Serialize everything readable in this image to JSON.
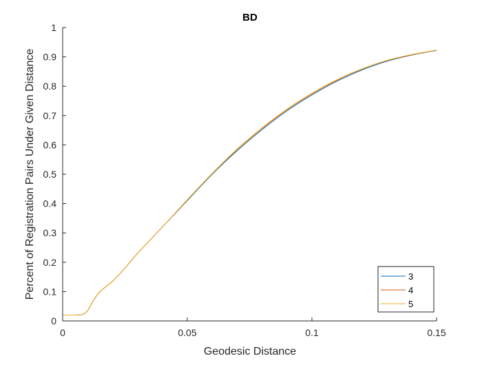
{
  "chart_data": {
    "type": "line",
    "title": "BD",
    "xlabel": "Geodesic Distance",
    "ylabel": "Percent of Registration Pairs Under Given Distance",
    "xlim": [
      0,
      0.15
    ],
    "ylim": [
      0,
      1
    ],
    "xticks": [
      0,
      0.05,
      0.1,
      0.15
    ],
    "xtick_labels": [
      "0",
      "0.05",
      "0.1",
      "0.15"
    ],
    "yticks": [
      0,
      0.1,
      0.2,
      0.3,
      0.4,
      0.5,
      0.6,
      0.7,
      0.8,
      0.9,
      1
    ],
    "ytick_labels": [
      "0",
      "0.1",
      "0.2",
      "0.3",
      "0.4",
      "0.5",
      "0.6",
      "0.7",
      "0.8",
      "0.9",
      "1"
    ],
    "grid": false,
    "legend_position": "bottom-right",
    "series": [
      {
        "name": "3",
        "color": "#0072BD",
        "x": [
          0,
          0.005,
          0.008,
          0.01,
          0.012,
          0.015,
          0.02,
          0.025,
          0.03,
          0.04,
          0.05,
          0.06,
          0.07,
          0.08,
          0.09,
          0.1,
          0.11,
          0.12,
          0.13,
          0.14,
          0.15
        ],
        "y": [
          0.02,
          0.02,
          0.022,
          0.035,
          0.065,
          0.1,
          0.135,
          0.18,
          0.23,
          0.32,
          0.41,
          0.5,
          0.58,
          0.652,
          0.716,
          0.77,
          0.817,
          0.855,
          0.885,
          0.906,
          0.922
        ]
      },
      {
        "name": "4",
        "color": "#D95319",
        "x": [
          0,
          0.005,
          0.008,
          0.01,
          0.012,
          0.015,
          0.02,
          0.025,
          0.03,
          0.04,
          0.05,
          0.06,
          0.07,
          0.08,
          0.09,
          0.1,
          0.11,
          0.12,
          0.13,
          0.14,
          0.15
        ],
        "y": [
          0.02,
          0.02,
          0.022,
          0.035,
          0.065,
          0.1,
          0.135,
          0.18,
          0.23,
          0.32,
          0.412,
          0.502,
          0.584,
          0.656,
          0.72,
          0.774,
          0.82,
          0.858,
          0.887,
          0.907,
          0.923
        ]
      },
      {
        "name": "5",
        "color": "#EDB120",
        "x": [
          0,
          0.005,
          0.008,
          0.01,
          0.012,
          0.015,
          0.02,
          0.025,
          0.03,
          0.04,
          0.05,
          0.06,
          0.07,
          0.08,
          0.09,
          0.1,
          0.11,
          0.12,
          0.13,
          0.14,
          0.15
        ],
        "y": [
          0.02,
          0.02,
          0.022,
          0.035,
          0.065,
          0.1,
          0.135,
          0.18,
          0.23,
          0.32,
          0.413,
          0.503,
          0.586,
          0.658,
          0.722,
          0.776,
          0.822,
          0.859,
          0.888,
          0.908,
          0.923
        ]
      }
    ]
  }
}
